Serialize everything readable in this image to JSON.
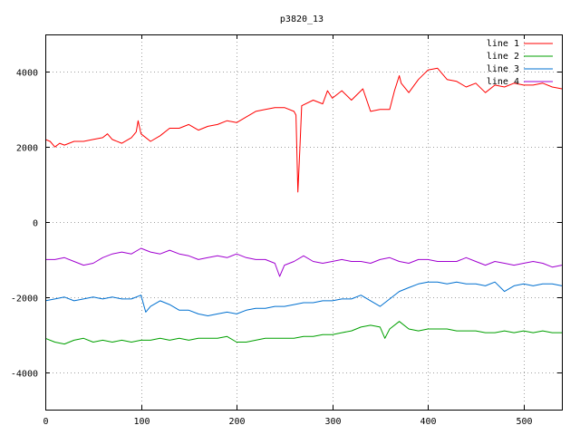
{
  "chart_data": {
    "type": "line",
    "title": "p3820_13",
    "xlabel": "",
    "ylabel": "",
    "xlim": [
      0,
      540
    ],
    "ylim": [
      -5000,
      5000
    ],
    "x_ticks": [
      0,
      100,
      200,
      300,
      400,
      500
    ],
    "y_ticks": [
      -4000,
      -2000,
      0,
      2000,
      4000
    ],
    "grid": true,
    "legend_position": "top-right",
    "series": [
      {
        "name": "line 1",
        "color": "#ff0000",
        "points": [
          [
            0,
            2200
          ],
          [
            5,
            2150
          ],
          [
            10,
            2000
          ],
          [
            15,
            2100
          ],
          [
            20,
            2050
          ],
          [
            30,
            2150
          ],
          [
            40,
            2150
          ],
          [
            50,
            2200
          ],
          [
            60,
            2250
          ],
          [
            65,
            2350
          ],
          [
            70,
            2200
          ],
          [
            80,
            2100
          ],
          [
            90,
            2250
          ],
          [
            95,
            2400
          ],
          [
            97,
            2700
          ],
          [
            100,
            2350
          ],
          [
            110,
            2150
          ],
          [
            120,
            2300
          ],
          [
            130,
            2500
          ],
          [
            140,
            2500
          ],
          [
            150,
            2600
          ],
          [
            160,
            2450
          ],
          [
            170,
            2550
          ],
          [
            180,
            2600
          ],
          [
            190,
            2700
          ],
          [
            200,
            2650
          ],
          [
            210,
            2800
          ],
          [
            220,
            2950
          ],
          [
            230,
            3000
          ],
          [
            240,
            3050
          ],
          [
            250,
            3050
          ],
          [
            260,
            2950
          ],
          [
            262,
            2850
          ],
          [
            264,
            800
          ],
          [
            266,
            1900
          ],
          [
            268,
            3100
          ],
          [
            280,
            3250
          ],
          [
            290,
            3150
          ],
          [
            295,
            3500
          ],
          [
            300,
            3300
          ],
          [
            310,
            3500
          ],
          [
            320,
            3250
          ],
          [
            330,
            3500
          ],
          [
            332,
            3550
          ],
          [
            340,
            2950
          ],
          [
            350,
            3000
          ],
          [
            360,
            3000
          ],
          [
            365,
            3500
          ],
          [
            370,
            3900
          ],
          [
            372,
            3700
          ],
          [
            380,
            3450
          ],
          [
            390,
            3800
          ],
          [
            400,
            4050
          ],
          [
            410,
            4100
          ],
          [
            420,
            3800
          ],
          [
            430,
            3750
          ],
          [
            440,
            3600
          ],
          [
            450,
            3700
          ],
          [
            460,
            3450
          ],
          [
            470,
            3650
          ],
          [
            480,
            3600
          ],
          [
            490,
            3700
          ],
          [
            500,
            3650
          ],
          [
            510,
            3650
          ],
          [
            520,
            3700
          ],
          [
            530,
            3600
          ],
          [
            540,
            3550
          ]
        ]
      },
      {
        "name": "line 2",
        "color": "#00a000",
        "points": [
          [
            0,
            -3100
          ],
          [
            10,
            -3200
          ],
          [
            20,
            -3250
          ],
          [
            30,
            -3150
          ],
          [
            40,
            -3100
          ],
          [
            50,
            -3200
          ],
          [
            60,
            -3150
          ],
          [
            70,
            -3200
          ],
          [
            80,
            -3150
          ],
          [
            90,
            -3200
          ],
          [
            100,
            -3150
          ],
          [
            110,
            -3150
          ],
          [
            120,
            -3100
          ],
          [
            130,
            -3150
          ],
          [
            140,
            -3100
          ],
          [
            150,
            -3150
          ],
          [
            160,
            -3100
          ],
          [
            170,
            -3100
          ],
          [
            180,
            -3100
          ],
          [
            190,
            -3050
          ],
          [
            200,
            -3200
          ],
          [
            210,
            -3200
          ],
          [
            220,
            -3150
          ],
          [
            230,
            -3100
          ],
          [
            240,
            -3100
          ],
          [
            250,
            -3100
          ],
          [
            260,
            -3100
          ],
          [
            270,
            -3050
          ],
          [
            280,
            -3050
          ],
          [
            290,
            -3000
          ],
          [
            300,
            -3000
          ],
          [
            310,
            -2950
          ],
          [
            320,
            -2900
          ],
          [
            330,
            -2800
          ],
          [
            340,
            -2750
          ],
          [
            350,
            -2800
          ],
          [
            355,
            -3100
          ],
          [
            360,
            -2850
          ],
          [
            370,
            -2650
          ],
          [
            380,
            -2850
          ],
          [
            390,
            -2900
          ],
          [
            400,
            -2850
          ],
          [
            410,
            -2850
          ],
          [
            420,
            -2850
          ],
          [
            430,
            -2900
          ],
          [
            440,
            -2900
          ],
          [
            450,
            -2900
          ],
          [
            460,
            -2950
          ],
          [
            470,
            -2950
          ],
          [
            480,
            -2900
          ],
          [
            490,
            -2950
          ],
          [
            500,
            -2900
          ],
          [
            510,
            -2950
          ],
          [
            520,
            -2900
          ],
          [
            530,
            -2950
          ],
          [
            540,
            -2950
          ]
        ]
      },
      {
        "name": "line 3",
        "color": "#0070d0",
        "points": [
          [
            0,
            -2100
          ],
          [
            10,
            -2050
          ],
          [
            20,
            -2000
          ],
          [
            30,
            -2100
          ],
          [
            40,
            -2050
          ],
          [
            50,
            -2000
          ],
          [
            60,
            -2050
          ],
          [
            70,
            -2000
          ],
          [
            80,
            -2050
          ],
          [
            90,
            -2050
          ],
          [
            100,
            -1950
          ],
          [
            105,
            -2400
          ],
          [
            110,
            -2250
          ],
          [
            120,
            -2100
          ],
          [
            130,
            -2200
          ],
          [
            140,
            -2350
          ],
          [
            150,
            -2350
          ],
          [
            160,
            -2450
          ],
          [
            170,
            -2500
          ],
          [
            180,
            -2450
          ],
          [
            190,
            -2400
          ],
          [
            200,
            -2450
          ],
          [
            210,
            -2350
          ],
          [
            220,
            -2300
          ],
          [
            230,
            -2300
          ],
          [
            240,
            -2250
          ],
          [
            250,
            -2250
          ],
          [
            260,
            -2200
          ],
          [
            270,
            -2150
          ],
          [
            280,
            -2150
          ],
          [
            290,
            -2100
          ],
          [
            300,
            -2100
          ],
          [
            310,
            -2050
          ],
          [
            320,
            -2050
          ],
          [
            330,
            -1950
          ],
          [
            340,
            -2100
          ],
          [
            350,
            -2250
          ],
          [
            360,
            -2050
          ],
          [
            370,
            -1850
          ],
          [
            380,
            -1750
          ],
          [
            390,
            -1650
          ],
          [
            400,
            -1600
          ],
          [
            410,
            -1600
          ],
          [
            420,
            -1650
          ],
          [
            430,
            -1600
          ],
          [
            440,
            -1650
          ],
          [
            450,
            -1650
          ],
          [
            460,
            -1700
          ],
          [
            470,
            -1600
          ],
          [
            480,
            -1850
          ],
          [
            490,
            -1700
          ],
          [
            500,
            -1650
          ],
          [
            510,
            -1700
          ],
          [
            520,
            -1650
          ],
          [
            530,
            -1650
          ],
          [
            540,
            -1700
          ]
        ]
      },
      {
        "name": "line 4",
        "color": "#a000d0",
        "points": [
          [
            0,
            -1000
          ],
          [
            10,
            -1000
          ],
          [
            20,
            -950
          ],
          [
            30,
            -1050
          ],
          [
            40,
            -1150
          ],
          [
            50,
            -1100
          ],
          [
            60,
            -950
          ],
          [
            70,
            -850
          ],
          [
            80,
            -800
          ],
          [
            90,
            -850
          ],
          [
            100,
            -700
          ],
          [
            110,
            -800
          ],
          [
            120,
            -850
          ],
          [
            130,
            -750
          ],
          [
            140,
            -850
          ],
          [
            150,
            -900
          ],
          [
            160,
            -1000
          ],
          [
            170,
            -950
          ],
          [
            180,
            -900
          ],
          [
            190,
            -950
          ],
          [
            200,
            -850
          ],
          [
            210,
            -950
          ],
          [
            220,
            -1000
          ],
          [
            230,
            -1000
          ],
          [
            240,
            -1100
          ],
          [
            245,
            -1450
          ],
          [
            250,
            -1150
          ],
          [
            260,
            -1050
          ],
          [
            270,
            -900
          ],
          [
            280,
            -1050
          ],
          [
            290,
            -1100
          ],
          [
            300,
            -1050
          ],
          [
            310,
            -1000
          ],
          [
            320,
            -1050
          ],
          [
            330,
            -1050
          ],
          [
            340,
            -1100
          ],
          [
            350,
            -1000
          ],
          [
            360,
            -950
          ],
          [
            370,
            -1050
          ],
          [
            380,
            -1100
          ],
          [
            390,
            -1000
          ],
          [
            400,
            -1000
          ],
          [
            410,
            -1050
          ],
          [
            420,
            -1050
          ],
          [
            430,
            -1050
          ],
          [
            440,
            -950
          ],
          [
            450,
            -1050
          ],
          [
            460,
            -1150
          ],
          [
            470,
            -1050
          ],
          [
            480,
            -1100
          ],
          [
            490,
            -1150
          ],
          [
            500,
            -1100
          ],
          [
            510,
            -1050
          ],
          [
            520,
            -1100
          ],
          [
            530,
            -1200
          ],
          [
            540,
            -1150
          ]
        ]
      }
    ]
  }
}
